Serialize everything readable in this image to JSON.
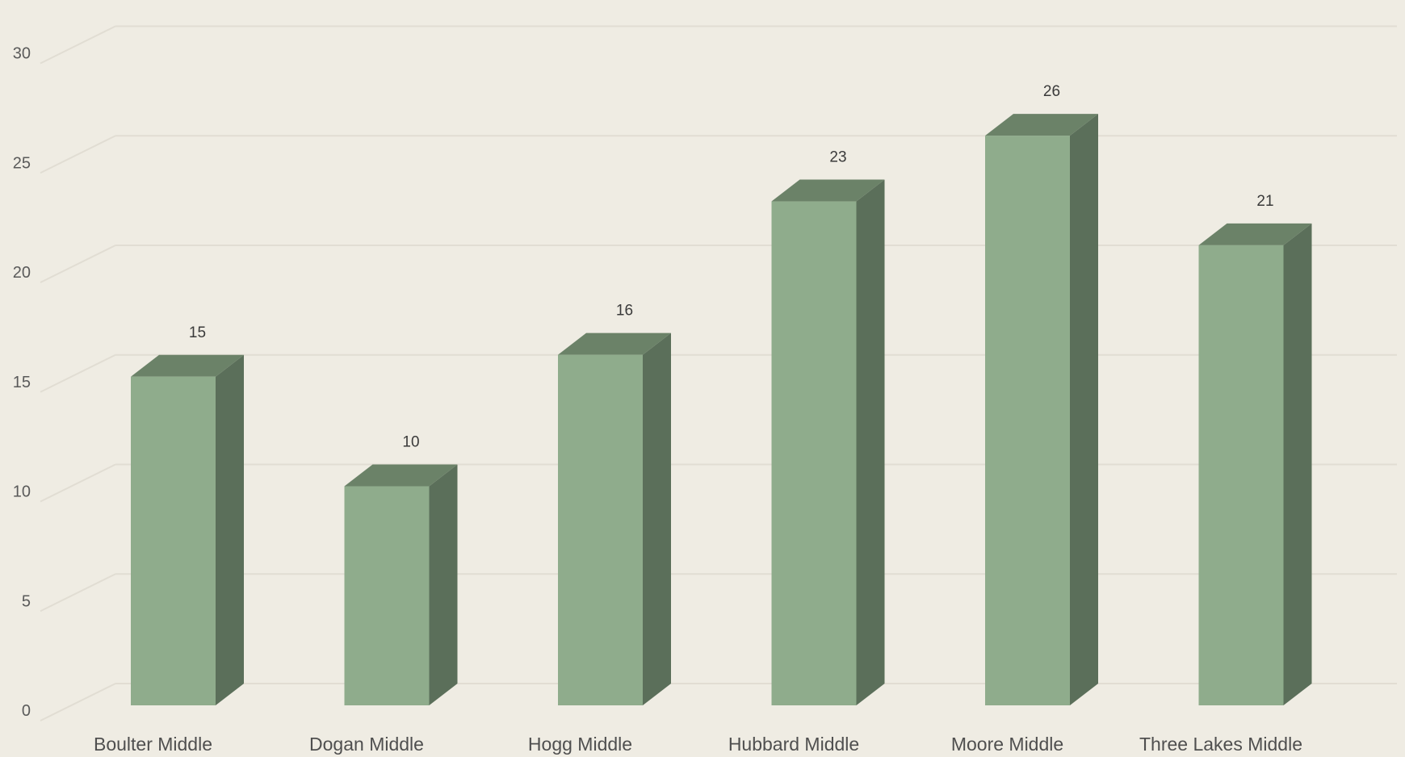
{
  "chart_data": {
    "type": "bar",
    "style": "3d-column",
    "categories": [
      "Boulter Middle",
      "Dogan Middle",
      "Hogg Middle",
      "Hubbard Middle",
      "Moore Middle",
      "Three Lakes Middle"
    ],
    "values": [
      15,
      10,
      16,
      23,
      26,
      21
    ],
    "data_labels": [
      "15",
      "10",
      "16",
      "23",
      "26",
      "21"
    ],
    "y_ticks": [
      "0",
      "5",
      "10",
      "15",
      "20",
      "25",
      "30"
    ],
    "ylim": [
      0,
      32
    ],
    "grid": true,
    "legend": "none",
    "colors": {
      "background": "#efece3",
      "bar_front": "#8fac8c",
      "bar_side": "#5b6f5a",
      "bar_top": "#6b8268",
      "grid": "#e1ddd3"
    }
  }
}
